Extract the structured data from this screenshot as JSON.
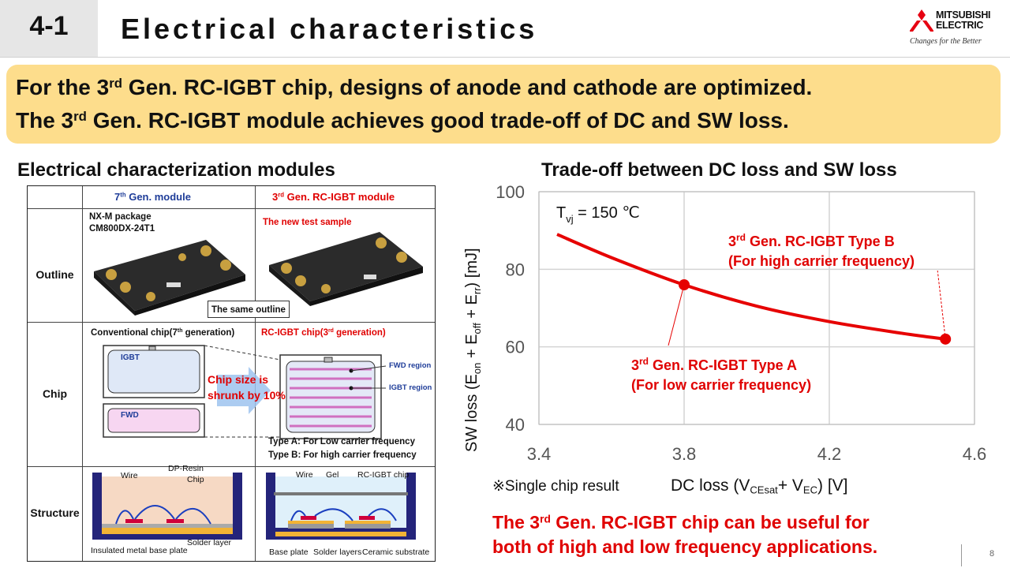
{
  "header": {
    "section": "4-1",
    "title": "Electrical characteristics",
    "brand_line1": "MITSUBISHI",
    "brand_line2": "ELECTRIC",
    "tagline": "Changes for the Better",
    "brand_color": "#e60012"
  },
  "banner": {
    "line1_pre": "For the 3",
    "line1_sup": "rd",
    "line1_post": " Gen. RC-IGBT chip, designs of anode and cathode are optimized.",
    "line2_pre": "The 3",
    "line2_sup": "rd",
    "line2_post": " Gen. RC-IGBT module achieves good trade-off of DC and SW loss.",
    "bg_color": "#fddd8c"
  },
  "left": {
    "heading": "Electrical characterization modules",
    "col1_pre": "7",
    "col1_sup": "th",
    "col1_post": " Gen. module",
    "col2_pre": "3",
    "col2_sup": "rd",
    "col2_post": " Gen. RC-IGBT module",
    "rows": [
      "Outline",
      "Chip",
      "Structure"
    ],
    "outline": {
      "pkg": "NX-M package",
      "part": "CM800DX-24T1",
      "new_sample": "The new test sample",
      "same_outline": "The same outline"
    },
    "chip": {
      "conv_pre": "Conventional chip(7",
      "conv_sup": "th",
      "conv_post": " generation)",
      "rc_pre": "RC-IGBT chip(3",
      "rc_sup": "rd",
      "rc_post": " generation)",
      "igbt": "IGBT",
      "fwd": "FWD",
      "shrink1": "Chip size is",
      "shrink2": "shrunk by 10%",
      "fwd_region": "FWD region",
      "igbt_region": "IGBT region",
      "type_a": "Type A: For Low carrier frequency",
      "type_b": "Type B: For high carrier frequency"
    },
    "structure": {
      "wire": "Wire",
      "dp_resin": "DP-Resin",
      "chip": "Chip",
      "solder_layer": "Solder layer",
      "base_plate_ins": "Insulated metal base plate",
      "wire2": "Wire",
      "gel": "Gel",
      "rc_chip": "RC-IGBT chip",
      "base_plate": "Base plate",
      "solder_layers": "Solder layers",
      "ceramic": "Ceramic substrate"
    }
  },
  "right": {
    "heading": "Trade-off between DC loss and SW loss",
    "note": "※Single chip result",
    "xlabel_pre": "DC loss (V",
    "xlabel_sub1": "CEsat",
    "xlabel_mid": "+ V",
    "xlabel_sub2": "EC",
    "xlabel_post": ") [V]",
    "ylabel": "SW loss (E_on + E_off + E_rr) [mJ]",
    "conclusion1_pre": "The 3",
    "conclusion1_sup": "rd",
    "conclusion1_post": " Gen. RC-IGBT chip can be useful for",
    "conclusion2": "both of high and low frequency applications."
  },
  "chart_data": {
    "type": "line",
    "x_range": [
      3.4,
      4.6
    ],
    "y_range": [
      40,
      100
    ],
    "x_ticks": [
      "3.4",
      "3.8",
      "4.2",
      "4.6"
    ],
    "y_ticks": [
      "40",
      "60",
      "80",
      "100"
    ],
    "grid": true,
    "series": [
      {
        "color": "#e60000",
        "x": [
          3.45,
          3.6,
          3.8,
          4.0,
          4.2,
          4.4,
          4.52
        ],
        "y": [
          89,
          83,
          76,
          70.5,
          66.5,
          63.5,
          62
        ]
      }
    ],
    "points": [
      {
        "x": 3.8,
        "y": 76
      },
      {
        "x": 4.52,
        "y": 62
      }
    ],
    "annotations": {
      "tvj": "T",
      "tvj_sub": "vj",
      "tvj_post": " = 150 ℃",
      "type_a_pre": "3",
      "type_a_sup": "rd",
      "type_a_post": " Gen. RC-IGBT Type A",
      "type_a_2": "(For low carrier frequency)",
      "type_b_pre": "3",
      "type_b_sup": "rd",
      "type_b_post": " Gen. RC-IGBT Type B",
      "type_b_2": "(For high carrier frequency)"
    }
  },
  "page": {
    "number": "8"
  }
}
